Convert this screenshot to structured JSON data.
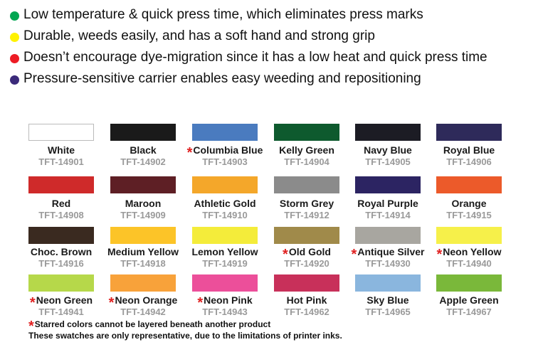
{
  "bullets": [
    {
      "text": "Low temperature & quick press time, which eliminates press marks",
      "color": "#00a651"
    },
    {
      "text": "Durable, weeds easily, and has a soft hand and strong grip",
      "color": "#fff200"
    },
    {
      "text": "Doesn’t encourage dye-migration since it has a low heat and quick press time",
      "color": "#ed1c24"
    },
    {
      "text": "Pressure-sensitive carrier enables easy weeding and repositioning",
      "color": "#3b2a7a"
    }
  ],
  "swatches": [
    [
      {
        "name": "White",
        "code": "TFT-14901",
        "color": "#ffffff"
      },
      {
        "name": "Black",
        "code": "TFT-14902",
        "color": "#1a1a1a"
      },
      {
        "star": "*",
        "name": "Columbia Blue",
        "code": "TFT-14903",
        "color": "#4a7bbf"
      },
      {
        "name": "Kelly Green",
        "code": "TFT-14904",
        "color": "#0e5a2e"
      },
      {
        "name": "Navy Blue",
        "code": "TFT-14905",
        "color": "#1c1c24"
      },
      {
        "name": "Royal Blue",
        "code": "TFT-14906",
        "color": "#2e2a5a"
      }
    ],
    [
      {
        "name": "Red",
        "code": "TFT-14908",
        "color": "#cf2a2a"
      },
      {
        "name": "Maroon",
        "code": "TFT-14909",
        "color": "#5e1f25"
      },
      {
        "name": "Athletic Gold",
        "code": "TFT-14910",
        "color": "#f4a72a"
      },
      {
        "name": "Storm Grey",
        "code": "TFT-14912",
        "color": "#8b8b8b"
      },
      {
        "name": "Royal Purple",
        "code": "TFT-14914",
        "color": "#2c2462"
      },
      {
        "name": "Orange",
        "code": "TFT-14915",
        "color": "#ec5a2a"
      }
    ],
    [
      {
        "name": "Choc. Brown",
        "code": "TFT-14916",
        "color": "#3a2a20"
      },
      {
        "name": "Medium Yellow",
        "code": "TFT-14918",
        "color": "#fcc428"
      },
      {
        "name": "Lemon Yellow",
        "code": "TFT-14919",
        "color": "#f4ec3a"
      },
      {
        "star": "*",
        "name": "Old Gold",
        "code": "TFT-14920",
        "color": "#a08a4a"
      },
      {
        "star": "*",
        "name": "Antique Silver",
        "code": "TFT-14930",
        "color": "#a8a6a0"
      },
      {
        "star": "*",
        "name": "Neon Yellow",
        "code": "TFT-14940",
        "color": "#f6f04a"
      }
    ],
    [
      {
        "star": "*",
        "name": "Neon Green",
        "code": "TFT-14941",
        "color": "#b6d84a"
      },
      {
        "star": "*",
        "name": "Neon Orange",
        "code": "TFT-14942",
        "color": "#f8a23a"
      },
      {
        "star": "*",
        "name": "Neon Pink",
        "code": "TFT-14943",
        "color": "#ec4f9a"
      },
      {
        "name": "Hot Pink",
        "code": "TFT-14962",
        "color": "#c8305a"
      },
      {
        "name": "Sky Blue",
        "code": "TFT-14965",
        "color": "#8ab6de"
      },
      {
        "name": "Apple Green",
        "code": "TFT-14967",
        "color": "#7ab83a"
      }
    ]
  ],
  "footnote": {
    "star": "*",
    "text": "Starred colors cannot be layered beneath another product"
  },
  "disclaimer": "These swatches are only representative, due to the limitations of printer inks."
}
